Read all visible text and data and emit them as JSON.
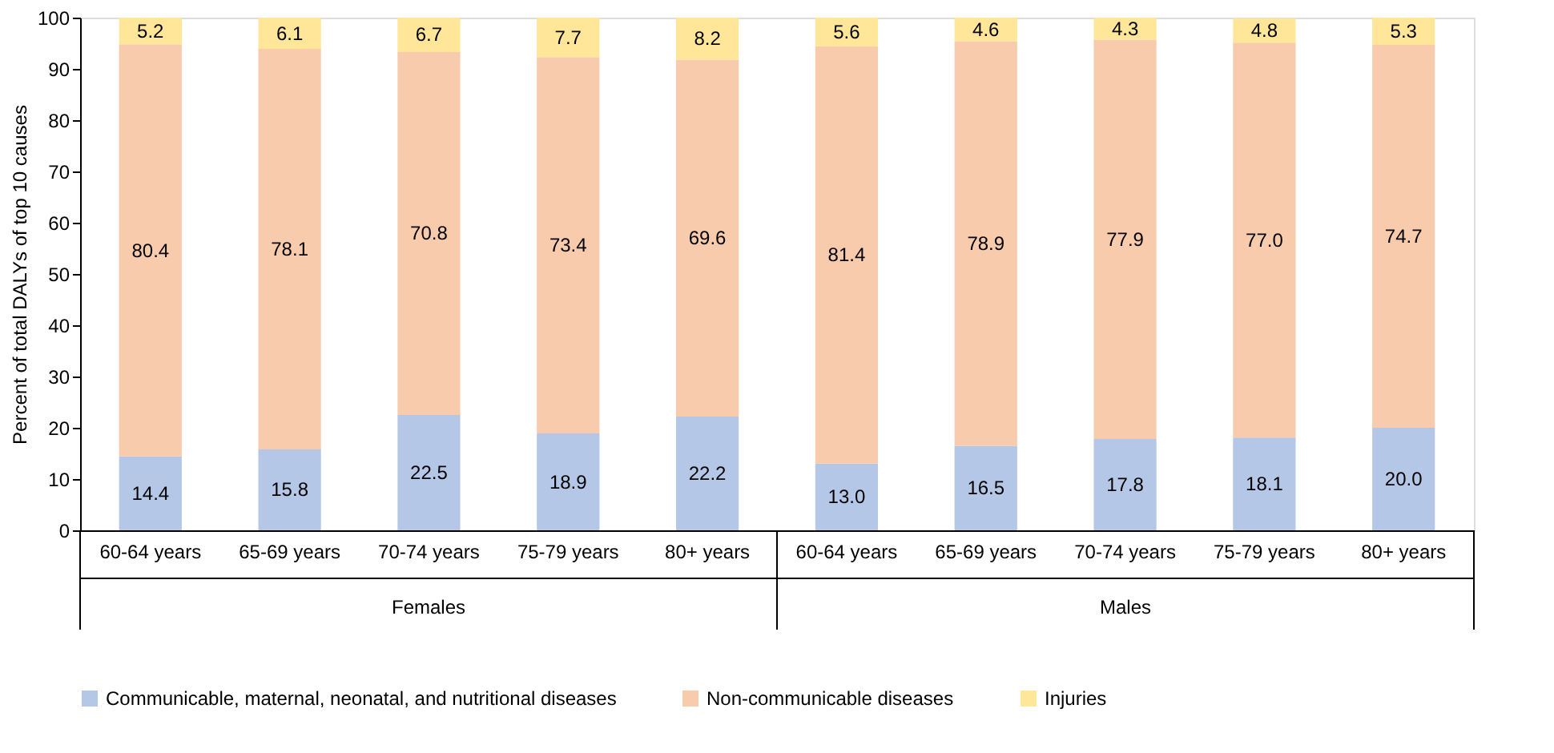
{
  "chart_data": {
    "type": "bar",
    "stacked": true,
    "ylabel": "Percent of total DALYs of top 10 causes",
    "categories": [
      "60-64 years",
      "65-69 years",
      "70-74 years",
      "75-79 years",
      "80+ years",
      "60-64 years",
      "65-69 years",
      "70-74 years",
      "75-79 years",
      "80+ years"
    ],
    "series": [
      {
        "name": "Communicable, maternal, neonatal, and nutritional diseases",
        "color": "#b4c7e7",
        "values": [
          14.4,
          15.8,
          22.5,
          18.9,
          22.2,
          13.0,
          16.5,
          17.8,
          18.1,
          20.0
        ],
        "value_labels": [
          "14.4",
          "15.8",
          "22.5",
          "18.9",
          "22.2",
          "13.0",
          "16.5",
          "17.8",
          "18.1",
          "20.0"
        ]
      },
      {
        "name": "Non-communicable diseases",
        "color": "#f8cbad",
        "values": [
          80.4,
          78.1,
          70.8,
          73.4,
          69.6,
          81.4,
          78.9,
          77.9,
          77.0,
          74.7
        ],
        "value_labels": [
          "80.4",
          "78.1",
          "70.8",
          "73.4",
          "69.6",
          "81.4",
          "78.9",
          "77.9",
          "77.0",
          "74.7"
        ]
      },
      {
        "name": "Injuries",
        "color": "#ffe699",
        "values": [
          5.2,
          6.1,
          6.7,
          7.7,
          8.2,
          5.6,
          4.6,
          4.3,
          4.8,
          5.3
        ],
        "value_labels": [
          "5.2",
          "6.1",
          "6.7",
          "7.7",
          "8.2",
          "5.6",
          "4.6",
          "4.3",
          "4.8",
          "5.3"
        ]
      }
    ],
    "ylim": [
      0,
      100
    ],
    "yticks": [
      0,
      10,
      20,
      30,
      40,
      50,
      60,
      70,
      80,
      90,
      100
    ],
    "grid": false,
    "legend": "bottom",
    "annotations": [
      "Females",
      "Males"
    ]
  }
}
